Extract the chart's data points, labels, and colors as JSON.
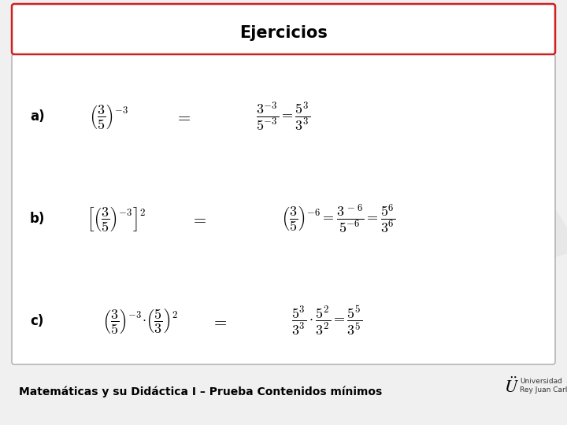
{
  "title": "Ejercicios",
  "title_fontsize": 15,
  "bg_color": "#f0f0f0",
  "border_color": "#cc2222",
  "label_a": "a)",
  "label_b": "b)",
  "label_c": "c)",
  "formula_a1": "$\\left(\\dfrac{3}{5}\\right)^{-3}$",
  "equals_sign": "$=$",
  "formula_a2": "$\\dfrac{3^{-3}}{5^{-3}} = \\dfrac{5^{3}}{3^{3}}$",
  "formula_b1": "$\\left[\\left(\\dfrac{3}{5}\\right)^{-3}\\right]^{2}$",
  "formula_b2": "$\\left(\\dfrac{3}{5}\\right)^{-6} = \\dfrac{3^{\\,-6}}{5^{-6}} = \\dfrac{5^{6}}{3^{6}}$",
  "formula_c1": "$\\left(\\dfrac{3}{5}\\right)^{-3}\\!\\cdot\\!\\left(\\dfrac{5}{3}\\right)^{2}$",
  "formula_c2": "$\\dfrac{5^{3}}{3^{3}}\\cdot\\dfrac{5^{2}}{3^{2}} = \\dfrac{5^{5}}{3^{5}}$",
  "footer": "Matemáticas y su Didáctica I – Prueba Contenidos mínimos",
  "footer_fontsize": 10,
  "math_fontsize": 13,
  "label_fontsize": 12,
  "wm_circle_color": "#f2c4c4",
  "wm_rect_color": "#f2c4c4",
  "wm_u_color": "#e0e0e0"
}
